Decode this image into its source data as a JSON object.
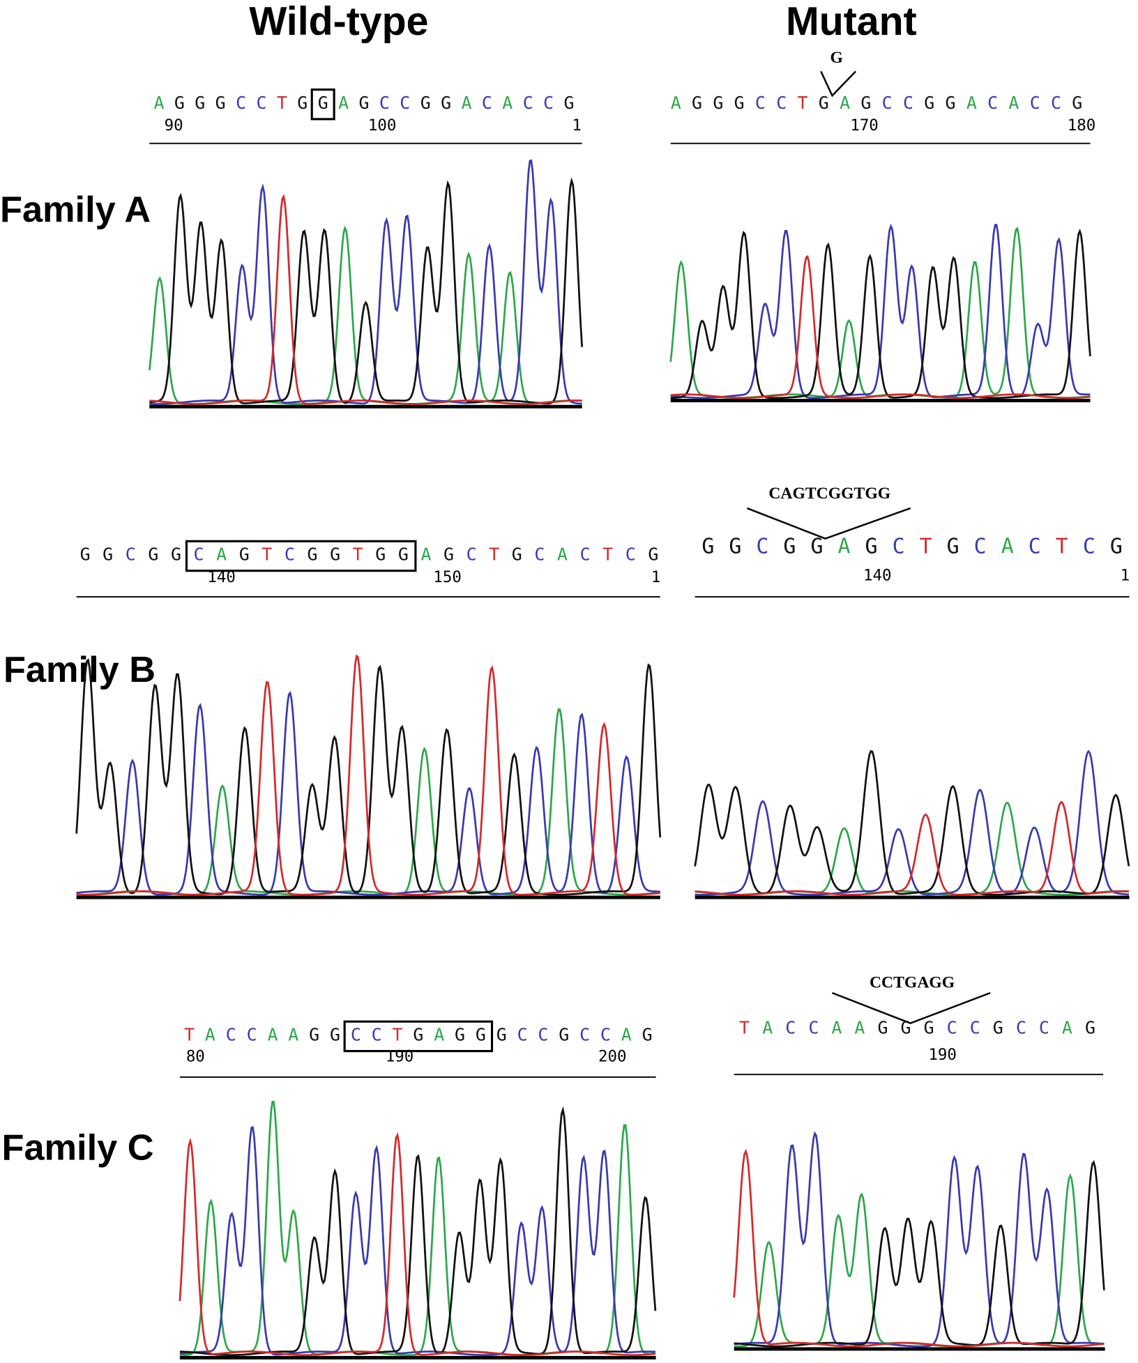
{
  "header": {
    "wild_type": "Wild-type",
    "mutant": "Mutant"
  },
  "families": [
    {
      "label": "Family A",
      "wild_type": {
        "sequence": [
          "A",
          "G",
          "G",
          "G",
          "C",
          "C",
          "T",
          "G",
          "G",
          "A",
          "G",
          "C",
          "C",
          "G",
          "G",
          "A",
          "C",
          "A",
          "C",
          "C",
          "G"
        ],
        "positions": [
          90,
          100,
          1
        ]
      },
      "mutant": {
        "sequence": [
          "A",
          "G",
          "G",
          "G",
          "C",
          "C",
          "T",
          "G",
          "A",
          "G",
          "C",
          "C",
          "G",
          "G",
          "A",
          "C",
          "A",
          "C",
          "C",
          "G"
        ],
        "positions": [
          170,
          180
        ],
        "insertion": "G"
      }
    },
    {
      "label": "Family B",
      "wild_type": {
        "sequence": [
          "G",
          "G",
          "C",
          "G",
          "G",
          "C",
          "A",
          "G",
          "T",
          "C",
          "G",
          "G",
          "T",
          "G",
          "G",
          "A",
          "G",
          "C",
          "T",
          "G",
          "C",
          "A",
          "C",
          "T",
          "C",
          "G"
        ],
        "positions": [
          140,
          150,
          1
        ]
      },
      "mutant": {
        "sequence": [
          "G",
          "G",
          "C",
          "G",
          "G",
          "A",
          "G",
          "C",
          "T",
          "G",
          "C",
          "A",
          "C",
          "T",
          "C",
          "G"
        ],
        "positions": [
          140,
          1
        ],
        "insertion": "CAGTCGGTGG"
      }
    },
    {
      "label": "Family C",
      "wild_type": {
        "sequence": [
          "T",
          "A",
          "C",
          "C",
          "A",
          "A",
          "G",
          "G",
          "C",
          "C",
          "T",
          "G",
          "A",
          "G",
          "G",
          "G",
          "C",
          "C",
          "G",
          "C",
          "C",
          "A",
          "G"
        ],
        "positions": [
          80,
          190,
          200
        ]
      },
      "mutant": {
        "sequence": [
          "T",
          "A",
          "C",
          "C",
          "A",
          "A",
          "G",
          "G",
          "G",
          "C",
          "C",
          "G",
          "C",
          "C",
          "A",
          "G"
        ],
        "positions": [
          190
        ],
        "insertion": "CCTGAGG"
      }
    }
  ]
}
